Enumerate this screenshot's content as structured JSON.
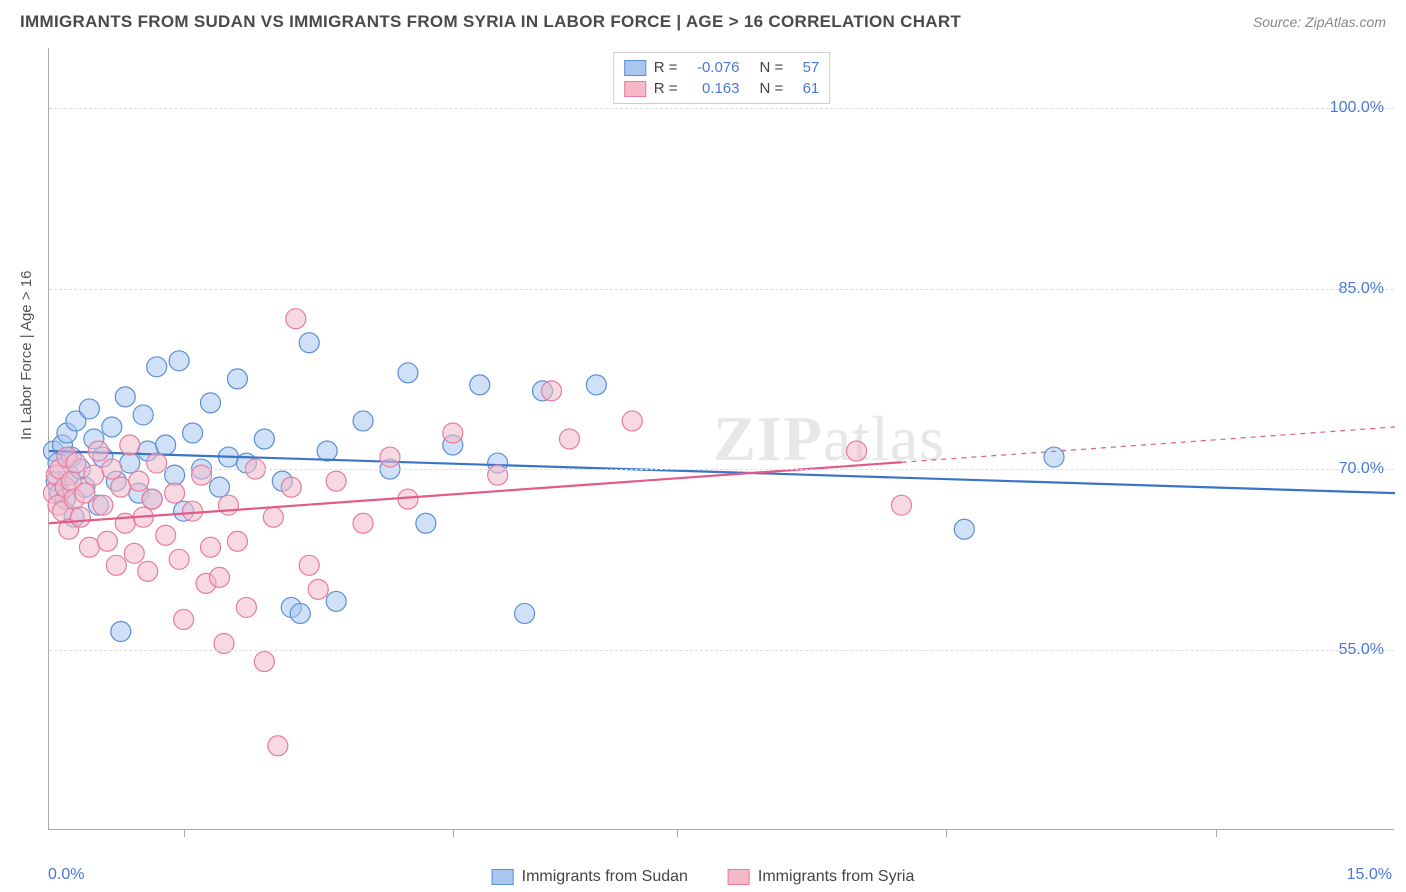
{
  "header": {
    "title": "IMMIGRANTS FROM SUDAN VS IMMIGRANTS FROM SYRIA IN LABOR FORCE | AGE > 16 CORRELATION CHART",
    "source": "Source: ZipAtlas.com"
  },
  "chart": {
    "type": "scatter",
    "y_axis_label": "In Labor Force | Age > 16",
    "watermark": "ZIPatlas",
    "background_color": "#ffffff",
    "grid_color": "#dddddd",
    "axis_color": "#aaaaaa",
    "label_color": "#4a78d6",
    "xlim": [
      0.0,
      15.0
    ],
    "ylim": [
      40.0,
      105.0
    ],
    "x_min_label": "0.0%",
    "x_max_label": "15.0%",
    "y_ticks": [
      55.0,
      70.0,
      85.0,
      100.0
    ],
    "y_tick_labels": [
      "55.0%",
      "70.0%",
      "85.0%",
      "100.0%"
    ],
    "x_tick_positions": [
      1.5,
      4.5,
      7.0,
      10.0,
      13.0
    ],
    "marker_radius": 10,
    "marker_opacity": 0.55,
    "trend_line_width": 2.2,
    "series": [
      {
        "id": "sudan",
        "name": "Immigrants from Sudan",
        "fill": "#a9c6ef",
        "stroke": "#5a8fd6",
        "line_color": "#3b74c4",
        "r": -0.076,
        "n": 57,
        "trend": {
          "y_at_xmin": 71.5,
          "y_at_xmax": 68.0,
          "x_data_max": 15.0
        },
        "points": [
          [
            0.05,
            71.5
          ],
          [
            0.08,
            69.0
          ],
          [
            0.1,
            70.5
          ],
          [
            0.12,
            68.0
          ],
          [
            0.15,
            72.0
          ],
          [
            0.18,
            67.5
          ],
          [
            0.2,
            73.0
          ],
          [
            0.22,
            69.5
          ],
          [
            0.25,
            71.0
          ],
          [
            0.28,
            66.0
          ],
          [
            0.3,
            74.0
          ],
          [
            0.35,
            70.0
          ],
          [
            0.4,
            68.5
          ],
          [
            0.45,
            75.0
          ],
          [
            0.5,
            72.5
          ],
          [
            0.55,
            67.0
          ],
          [
            0.6,
            71.0
          ],
          [
            0.7,
            73.5
          ],
          [
            0.75,
            69.0
          ],
          [
            0.8,
            56.5
          ],
          [
            0.85,
            76.0
          ],
          [
            0.9,
            70.5
          ],
          [
            1.0,
            68.0
          ],
          [
            1.05,
            74.5
          ],
          [
            1.1,
            71.5
          ],
          [
            1.15,
            67.5
          ],
          [
            1.2,
            78.5
          ],
          [
            1.3,
            72.0
          ],
          [
            1.4,
            69.5
          ],
          [
            1.45,
            79.0
          ],
          [
            1.5,
            66.5
          ],
          [
            1.6,
            73.0
          ],
          [
            1.7,
            70.0
          ],
          [
            1.8,
            75.5
          ],
          [
            1.9,
            68.5
          ],
          [
            2.0,
            71.0
          ],
          [
            2.1,
            77.5
          ],
          [
            2.2,
            70.5
          ],
          [
            2.4,
            72.5
          ],
          [
            2.6,
            69.0
          ],
          [
            2.7,
            58.5
          ],
          [
            2.8,
            58.0
          ],
          [
            2.9,
            80.5
          ],
          [
            3.1,
            71.5
          ],
          [
            3.2,
            59.0
          ],
          [
            3.5,
            74.0
          ],
          [
            3.8,
            70.0
          ],
          [
            4.0,
            78.0
          ],
          [
            4.2,
            65.5
          ],
          [
            4.5,
            72.0
          ],
          [
            4.8,
            77.0
          ],
          [
            5.0,
            70.5
          ],
          [
            5.3,
            58.0
          ],
          [
            5.5,
            76.5
          ],
          [
            10.2,
            65.0
          ],
          [
            11.2,
            71.0
          ],
          [
            6.1,
            77.0
          ]
        ]
      },
      {
        "id": "syria",
        "name": "Immigrants from Syria",
        "fill": "#f4b9c9",
        "stroke": "#e77ba0",
        "line_color": "#e05a8a",
        "r": 0.163,
        "n": 61,
        "trend": {
          "y_at_xmin": 65.5,
          "y_at_xmax": 73.5,
          "x_data_max": 9.5
        },
        "points": [
          [
            0.05,
            68.0
          ],
          [
            0.08,
            69.5
          ],
          [
            0.1,
            67.0
          ],
          [
            0.12,
            70.0
          ],
          [
            0.15,
            66.5
          ],
          [
            0.18,
            68.5
          ],
          [
            0.2,
            71.0
          ],
          [
            0.22,
            65.0
          ],
          [
            0.25,
            69.0
          ],
          [
            0.28,
            67.5
          ],
          [
            0.3,
            70.5
          ],
          [
            0.35,
            66.0
          ],
          [
            0.4,
            68.0
          ],
          [
            0.45,
            63.5
          ],
          [
            0.5,
            69.5
          ],
          [
            0.55,
            71.5
          ],
          [
            0.6,
            67.0
          ],
          [
            0.65,
            64.0
          ],
          [
            0.7,
            70.0
          ],
          [
            0.75,
            62.0
          ],
          [
            0.8,
            68.5
          ],
          [
            0.85,
            65.5
          ],
          [
            0.9,
            72.0
          ],
          [
            0.95,
            63.0
          ],
          [
            1.0,
            69.0
          ],
          [
            1.05,
            66.0
          ],
          [
            1.1,
            61.5
          ],
          [
            1.15,
            67.5
          ],
          [
            1.2,
            70.5
          ],
          [
            1.3,
            64.5
          ],
          [
            1.4,
            68.0
          ],
          [
            1.45,
            62.5
          ],
          [
            1.5,
            57.5
          ],
          [
            1.6,
            66.5
          ],
          [
            1.7,
            69.5
          ],
          [
            1.75,
            60.5
          ],
          [
            1.8,
            63.5
          ],
          [
            1.9,
            61.0
          ],
          [
            1.95,
            55.5
          ],
          [
            2.0,
            67.0
          ],
          [
            2.1,
            64.0
          ],
          [
            2.2,
            58.5
          ],
          [
            2.3,
            70.0
          ],
          [
            2.4,
            54.0
          ],
          [
            2.5,
            66.0
          ],
          [
            2.55,
            47.0
          ],
          [
            2.7,
            68.5
          ],
          [
            2.75,
            82.5
          ],
          [
            2.9,
            62.0
          ],
          [
            3.0,
            60.0
          ],
          [
            3.2,
            69.0
          ],
          [
            3.5,
            65.5
          ],
          [
            3.8,
            71.0
          ],
          [
            4.0,
            67.5
          ],
          [
            4.5,
            73.0
          ],
          [
            5.0,
            69.5
          ],
          [
            5.6,
            76.5
          ],
          [
            5.8,
            72.5
          ],
          [
            6.5,
            74.0
          ],
          [
            9.0,
            71.5
          ],
          [
            9.5,
            67.0
          ]
        ]
      }
    ]
  },
  "legend_top": {
    "rows": [
      {
        "swatch": 0,
        "r_label": "R =",
        "r_value": "-0.076",
        "n_label": "N =",
        "n_value": "57"
      },
      {
        "swatch": 1,
        "r_label": "R =",
        "r_value": "0.163",
        "n_label": "N =",
        "n_value": "61"
      }
    ]
  },
  "legend_bottom": {
    "items": [
      {
        "swatch": 0,
        "label": "Immigrants from Sudan"
      },
      {
        "swatch": 1,
        "label": "Immigrants from Syria"
      }
    ]
  }
}
